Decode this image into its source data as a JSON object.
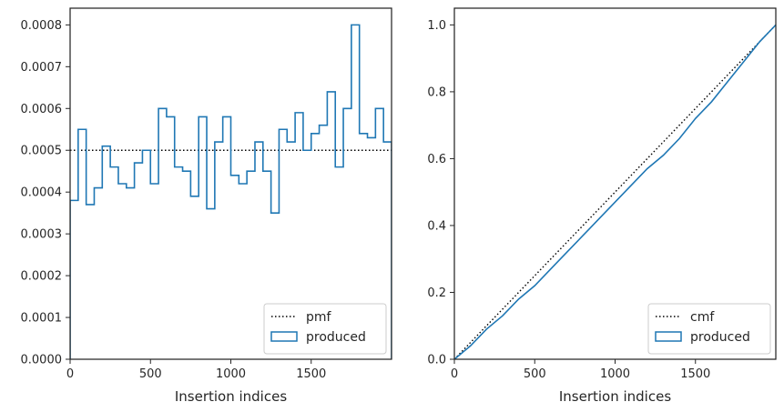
{
  "chart_data": [
    {
      "type": "line",
      "xlabel": "Insertion indices",
      "xlim": [
        0,
        2000
      ],
      "ylim": [
        0,
        0.00084
      ],
      "xticks": [
        0,
        500,
        1000,
        1500
      ],
      "xtick_labels": [
        "0",
        "500",
        "1000",
        "1500"
      ],
      "yticks": [
        0,
        0.0001,
        0.0002,
        0.0003,
        0.0004,
        0.0005,
        0.0006,
        0.0007,
        0.0008
      ],
      "ytick_labels": [
        "0.0000",
        "0.0001",
        "0.0002",
        "0.0003",
        "0.0004",
        "0.0005",
        "0.0006",
        "0.0007",
        "0.0008"
      ],
      "grid": false,
      "legend_position": "lower-right",
      "series": [
        {
          "name": "pmf",
          "kind": "line",
          "style": "dotted",
          "color": "#000000",
          "x": [
            0,
            2000
          ],
          "values": [
            0.0005,
            0.0005
          ]
        },
        {
          "name": "produced",
          "kind": "step-histogram",
          "color": "#1f77b4",
          "bin_edges": [
            0,
            50,
            100,
            150,
            200,
            250,
            300,
            350,
            400,
            450,
            500,
            550,
            600,
            650,
            700,
            750,
            800,
            850,
            900,
            950,
            1000,
            1050,
            1100,
            1150,
            1200,
            1250,
            1300,
            1350,
            1400,
            1450,
            1500,
            1550,
            1600,
            1650,
            1700,
            1750,
            1800,
            1850,
            1900,
            1950,
            2000
          ],
          "values": [
            0.00038,
            0.00055,
            0.00037,
            0.00041,
            0.00051,
            0.00046,
            0.00042,
            0.00041,
            0.00047,
            0.0005,
            0.00042,
            0.0006,
            0.00058,
            0.00046,
            0.00045,
            0.00039,
            0.00058,
            0.00036,
            0.00052,
            0.00058,
            0.00044,
            0.00042,
            0.00045,
            0.00052,
            0.00045,
            0.00035,
            0.00055,
            0.00052,
            0.00059,
            0.0005,
            0.00054,
            0.00056,
            0.00064,
            0.00046,
            0.0006,
            0.0008,
            0.00054,
            0.00053,
            0.0006,
            0.00052
          ]
        }
      ],
      "legend": [
        "pmf",
        "produced"
      ]
    },
    {
      "type": "line",
      "xlabel": "Insertion indices",
      "xlim": [
        0,
        2000
      ],
      "ylim": [
        0,
        1.05
      ],
      "xticks": [
        0,
        500,
        1000,
        1500
      ],
      "xtick_labels": [
        "0",
        "500",
        "1000",
        "1500"
      ],
      "yticks": [
        0,
        0.2,
        0.4,
        0.6,
        0.8,
        1.0
      ],
      "ytick_labels": [
        "0.0",
        "0.2",
        "0.4",
        "0.6",
        "0.8",
        "1.0"
      ],
      "grid": false,
      "legend_position": "lower-right",
      "series": [
        {
          "name": "cmf",
          "kind": "line",
          "style": "dotted",
          "color": "#000000",
          "x": [
            0,
            2000
          ],
          "values": [
            0,
            1.0
          ]
        },
        {
          "name": "produced",
          "kind": "line",
          "color": "#1f77b4",
          "x": [
            0,
            100,
            200,
            300,
            400,
            500,
            600,
            700,
            800,
            900,
            1000,
            1100,
            1200,
            1300,
            1400,
            1500,
            1600,
            1700,
            1800,
            1900,
            2000
          ],
          "values": [
            0,
            0.04,
            0.09,
            0.13,
            0.18,
            0.22,
            0.27,
            0.32,
            0.37,
            0.42,
            0.47,
            0.52,
            0.57,
            0.61,
            0.66,
            0.72,
            0.77,
            0.83,
            0.89,
            0.95,
            1.0
          ]
        }
      ],
      "legend": [
        "cmf",
        "produced"
      ]
    }
  ]
}
